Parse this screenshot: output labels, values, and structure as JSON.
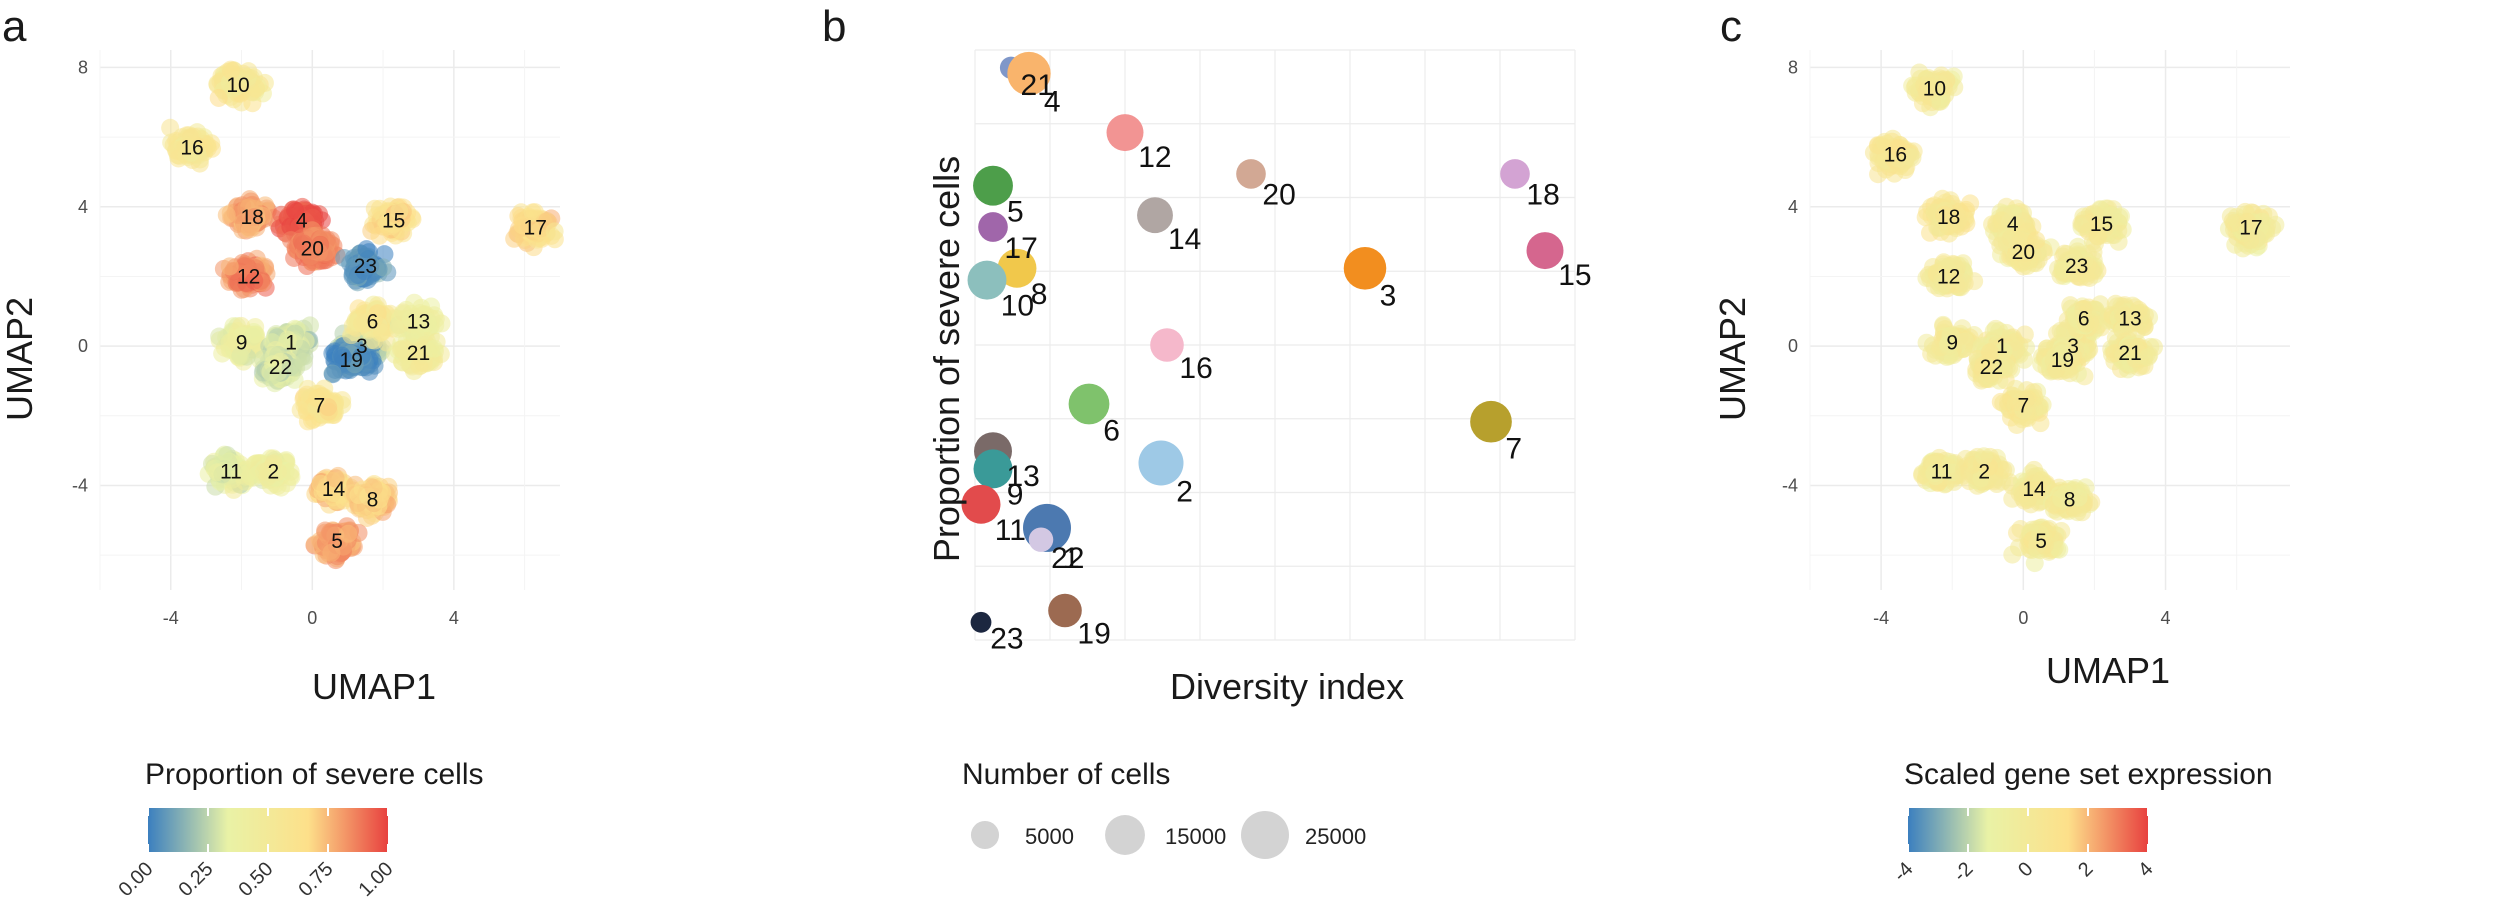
{
  "panels": {
    "a": {
      "letter": "a",
      "xlabel": "UMAP1",
      "ylabel": "UMAP2",
      "xticks": [
        "-4",
        "0",
        "4"
      ],
      "yticks": [
        "8",
        "4",
        "0",
        "-4"
      ],
      "legend_title": "Proportion of severe cells",
      "colorbar_ticks": [
        "0.00",
        "0.25",
        "0.50",
        "0.75",
        "1.00"
      ]
    },
    "b": {
      "letter": "b",
      "xlabel": "Diversity index",
      "ylabel": "Proportion of severe cells",
      "size_legend_title": "Number of cells",
      "size_legend_items": [
        "5000",
        "15000",
        "25000"
      ]
    },
    "c": {
      "letter": "c",
      "xlabel": "UMAP1",
      "ylabel": "UMAP2",
      "xticks": [
        "-4",
        "0",
        "4"
      ],
      "yticks": [
        "8",
        "4",
        "0",
        "-4"
      ],
      "legend_title": "Scaled gene set expression",
      "colorbar_ticks": [
        "-4",
        "-2",
        "0",
        "2",
        "4"
      ]
    }
  },
  "chart_data": [
    {
      "type": "scatter",
      "panel": "a",
      "xlabel": "UMAP1",
      "ylabel": "UMAP2",
      "xlim": [
        -6,
        7
      ],
      "ylim": [
        -7,
        8.5
      ],
      "color_scale": [
        "#3b7fbf",
        "#e9f2a6",
        "#fde08a",
        "#e8413f"
      ],
      "color_range": [
        0,
        1
      ],
      "clusters": [
        {
          "label": "10",
          "x": -2.1,
          "y": 7.5,
          "value": 0.55
        },
        {
          "label": "16",
          "x": -3.4,
          "y": 5.7,
          "value": 0.55
        },
        {
          "label": "18",
          "x": -1.7,
          "y": 3.7,
          "value": 0.8
        },
        {
          "label": "4",
          "x": -0.3,
          "y": 3.6,
          "value": 0.95
        },
        {
          "label": "20",
          "x": 0.0,
          "y": 2.8,
          "value": 0.85
        },
        {
          "label": "15",
          "x": 2.3,
          "y": 3.6,
          "value": 0.65
        },
        {
          "label": "17",
          "x": 6.3,
          "y": 3.4,
          "value": 0.65
        },
        {
          "label": "23",
          "x": 1.5,
          "y": 2.3,
          "value": 0.05
        },
        {
          "label": "12",
          "x": -1.8,
          "y": 2.0,
          "value": 0.85
        },
        {
          "label": "9",
          "x": -2.0,
          "y": 0.1,
          "value": 0.4
        },
        {
          "label": "1",
          "x": -0.6,
          "y": 0.1,
          "value": 0.3
        },
        {
          "label": "22",
          "x": -0.9,
          "y": -0.6,
          "value": 0.3
        },
        {
          "label": "3",
          "x": 1.4,
          "y": 0.0,
          "value": 0.25
        },
        {
          "label": "19",
          "x": 1.1,
          "y": -0.4,
          "value": 0.05
        },
        {
          "label": "6",
          "x": 1.7,
          "y": 0.7,
          "value": 0.55
        },
        {
          "label": "13",
          "x": 3.0,
          "y": 0.7,
          "value": 0.4
        },
        {
          "label": "21",
          "x": 3.0,
          "y": -0.2,
          "value": 0.45
        },
        {
          "label": "7",
          "x": 0.2,
          "y": -1.7,
          "value": 0.6
        },
        {
          "label": "11",
          "x": -2.3,
          "y": -3.6,
          "value": 0.35
        },
        {
          "label": "2",
          "x": -1.1,
          "y": -3.6,
          "value": 0.4
        },
        {
          "label": "14",
          "x": 0.6,
          "y": -4.1,
          "value": 0.7
        },
        {
          "label": "8",
          "x": 1.7,
          "y": -4.4,
          "value": 0.7
        },
        {
          "label": "5",
          "x": 0.7,
          "y": -5.6,
          "value": 0.8
        }
      ]
    },
    {
      "type": "scatter",
      "panel": "b",
      "xlabel": "Diversity index",
      "ylabel": "Proportion of severe cells",
      "points": [
        {
          "label": "21",
          "x": 0.06,
          "y": 0.97,
          "size": 2000,
          "color": "#7f97c9"
        },
        {
          "label": "4",
          "x": 0.09,
          "y": 0.96,
          "size": 19000,
          "color": "#f9b46c"
        },
        {
          "label": "12",
          "x": 0.25,
          "y": 0.86,
          "size": 12000,
          "color": "#f29493"
        },
        {
          "label": "5",
          "x": 0.03,
          "y": 0.77,
          "size": 15000,
          "color": "#4d9e4a"
        },
        {
          "label": "20",
          "x": 0.46,
          "y": 0.79,
          "size": 6000,
          "color": "#d2a894"
        },
        {
          "label": "18",
          "x": 0.9,
          "y": 0.79,
          "size": 6000,
          "color": "#d3a3d3"
        },
        {
          "label": "14",
          "x": 0.3,
          "y": 0.72,
          "size": 11000,
          "color": "#b0a6a3"
        },
        {
          "label": "17",
          "x": 0.03,
          "y": 0.7,
          "size": 6000,
          "color": "#a066aa"
        },
        {
          "label": "15",
          "x": 0.95,
          "y": 0.66,
          "size": 12000,
          "color": "#d5668e"
        },
        {
          "label": "8",
          "x": 0.07,
          "y": 0.63,
          "size": 14000,
          "color": "#f1c84b"
        },
        {
          "label": "3",
          "x": 0.65,
          "y": 0.63,
          "size": 18000,
          "color": "#f28e1f"
        },
        {
          "label": "10",
          "x": 0.02,
          "y": 0.61,
          "size": 14000,
          "color": "#8cbfbd"
        },
        {
          "label": "16",
          "x": 0.32,
          "y": 0.5,
          "size": 9000,
          "color": "#f5b8cb"
        },
        {
          "label": "6",
          "x": 0.19,
          "y": 0.4,
          "size": 16000,
          "color": "#7fc26c"
        },
        {
          "label": "7",
          "x": 0.86,
          "y": 0.37,
          "size": 17000,
          "color": "#b7a02d"
        },
        {
          "label": "13",
          "x": 0.03,
          "y": 0.32,
          "size": 13000,
          "color": "#7a6a68"
        },
        {
          "label": "9",
          "x": 0.03,
          "y": 0.29,
          "size": 14000,
          "color": "#3a9a98"
        },
        {
          "label": "2",
          "x": 0.31,
          "y": 0.3,
          "size": 21000,
          "color": "#9ec9e6"
        },
        {
          "label": "11",
          "x": 0.01,
          "y": 0.23,
          "size": 14000,
          "color": "#e24b4c"
        },
        {
          "label": "1",
          "x": 0.12,
          "y": 0.19,
          "size": 25000,
          "color": "#4c79b0"
        },
        {
          "label": "22",
          "x": 0.11,
          "y": 0.17,
          "size": 3000,
          "color": "#d3c8e3"
        },
        {
          "label": "19",
          "x": 0.15,
          "y": 0.05,
          "size": 9000,
          "color": "#9c6a51"
        },
        {
          "label": "23",
          "x": 0.01,
          "y": 0.03,
          "size": 1500,
          "color": "#1c2740"
        }
      ]
    },
    {
      "type": "scatter",
      "panel": "c",
      "xlabel": "UMAP1",
      "ylabel": "UMAP2",
      "xlim": [
        -6,
        7.5
      ],
      "ylim": [
        -7,
        8.5
      ],
      "color_scale": [
        "#3b7fbf",
        "#e9f2a6",
        "#fde08a",
        "#e8413f"
      ],
      "color_range": [
        -4,
        4
      ],
      "clusters": [
        {
          "label": "10",
          "x": -2.5,
          "y": 7.4,
          "value": 0
        },
        {
          "label": "16",
          "x": -3.6,
          "y": 5.5,
          "value": 0.5
        },
        {
          "label": "18",
          "x": -2.1,
          "y": 3.7,
          "value": 0.5
        },
        {
          "label": "4",
          "x": -0.3,
          "y": 3.5,
          "value": 0
        },
        {
          "label": "20",
          "x": 0.0,
          "y": 2.7,
          "value": 0
        },
        {
          "label": "15",
          "x": 2.2,
          "y": 3.5,
          "value": 0
        },
        {
          "label": "17",
          "x": 6.4,
          "y": 3.4,
          "value": 0
        },
        {
          "label": "23",
          "x": 1.5,
          "y": 2.3,
          "value": 0
        },
        {
          "label": "12",
          "x": -2.1,
          "y": 2.0,
          "value": 0
        },
        {
          "label": "9",
          "x": -2.0,
          "y": 0.1,
          "value": 0
        },
        {
          "label": "1",
          "x": -0.6,
          "y": 0.0,
          "value": 0
        },
        {
          "label": "22",
          "x": -0.9,
          "y": -0.6,
          "value": 0
        },
        {
          "label": "3",
          "x": 1.4,
          "y": 0.0,
          "value": 0
        },
        {
          "label": "19",
          "x": 1.1,
          "y": -0.4,
          "value": 0
        },
        {
          "label": "6",
          "x": 1.7,
          "y": 0.8,
          "value": 0
        },
        {
          "label": "13",
          "x": 3.0,
          "y": 0.8,
          "value": 0
        },
        {
          "label": "21",
          "x": 3.0,
          "y": -0.2,
          "value": 0
        },
        {
          "label": "7",
          "x": 0.0,
          "y": -1.7,
          "value": 0.3
        },
        {
          "label": "11",
          "x": -2.3,
          "y": -3.6,
          "value": 0
        },
        {
          "label": "2",
          "x": -1.1,
          "y": -3.6,
          "value": 0
        },
        {
          "label": "14",
          "x": 0.3,
          "y": -4.1,
          "value": 0
        },
        {
          "label": "8",
          "x": 1.3,
          "y": -4.4,
          "value": 0
        },
        {
          "label": "5",
          "x": 0.5,
          "y": -5.6,
          "value": 0
        }
      ]
    }
  ]
}
